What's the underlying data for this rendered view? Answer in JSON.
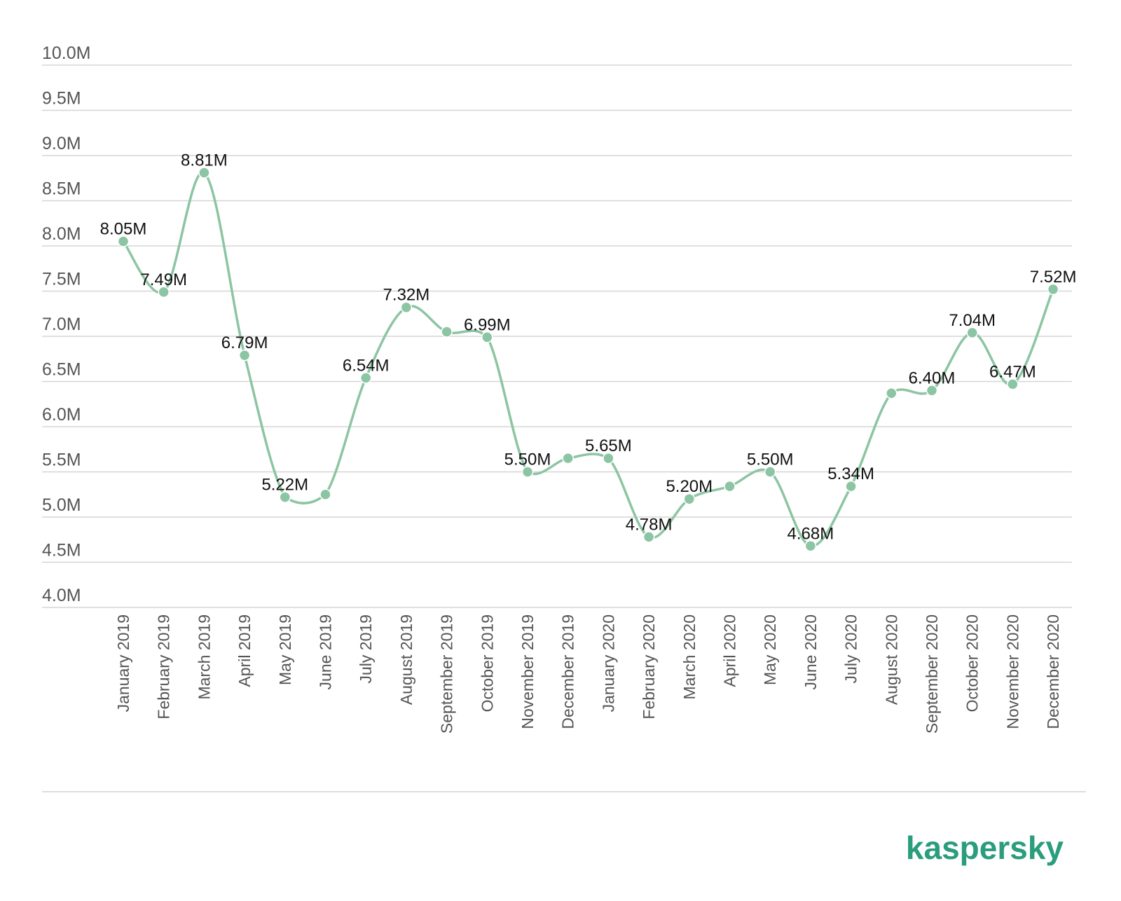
{
  "chart_data": {
    "type": "line",
    "title": "",
    "xlabel": "",
    "ylabel": "",
    "categories": [
      "January 2019",
      "February 2019",
      "March 2019",
      "April 2019",
      "May 2019",
      "June 2019",
      "July 2019",
      "August 2019",
      "September 2019",
      "October 2019",
      "November 2019",
      "December 2019",
      "January 2020",
      "February 2020",
      "March 2020",
      "April 2020",
      "May 2020",
      "June 2020",
      "July 2020",
      "August 2020",
      "September 2020",
      "October 2020",
      "November 2020",
      "December 2020"
    ],
    "series": [
      {
        "values": [
          8.05,
          7.49,
          8.81,
          6.79,
          5.22,
          5.25,
          6.54,
          7.32,
          7.05,
          6.99,
          5.5,
          5.65,
          5.65,
          4.78,
          5.2,
          5.34,
          5.5,
          4.68,
          5.34,
          6.37,
          6.4,
          7.04,
          6.47,
          7.52
        ],
        "labels": [
          "8.05M",
          "7.49M",
          "8.81M",
          "6.79M",
          "5.22M",
          "",
          "6.54M",
          "7.32M",
          "",
          "6.99M",
          "5.50M",
          "",
          "5.65M",
          "4.78M",
          "5.20M",
          "",
          "5.50M",
          "4.68M",
          "5.34M",
          "",
          "6.40M",
          "7.04M",
          "6.47M",
          "7.52M"
        ]
      }
    ],
    "yticks": [
      "10.0M",
      "9.5M",
      "9.0M",
      "8.5M",
      "8.0M",
      "7.5M",
      "7.0M",
      "6.5M",
      "6.0M",
      "5.5M",
      "5.0M",
      "4.5M",
      "4.0M"
    ],
    "ylim": [
      4.0,
      10.0
    ],
    "grid": true,
    "legend": "none",
    "line_color": "#8cc5a3"
  },
  "brand": {
    "logo_text": "kaspersky",
    "color": "#2a9d7c"
  }
}
